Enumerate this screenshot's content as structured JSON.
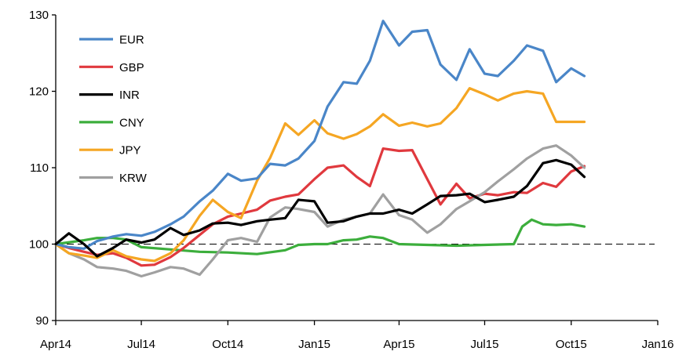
{
  "chart_data": {
    "type": "line",
    "title": "",
    "xlabel": "",
    "ylabel": "",
    "ylim": [
      90,
      130
    ],
    "yticks": [
      90,
      100,
      110,
      120,
      130
    ],
    "xlim": [
      "2014-04-01",
      "2016-01-01"
    ],
    "xticks": [
      {
        "date": "2014-04-01",
        "label": "Apr14"
      },
      {
        "date": "2014-07-01",
        "label": "Jul14"
      },
      {
        "date": "2014-10-01",
        "label": "Oct14"
      },
      {
        "date": "2015-01-01",
        "label": "Jan15"
      },
      {
        "date": "2015-04-01",
        "label": "Apr15"
      },
      {
        "date": "2015-07-01",
        "label": "Jul15"
      },
      {
        "date": "2015-10-01",
        "label": "Oct15"
      },
      {
        "date": "2016-01-01",
        "label": "Jan16"
      }
    ],
    "reference_line": {
      "value": 100,
      "style": "dashed"
    },
    "grid": false,
    "legend_position": "top-left",
    "series": [
      {
        "name": "EUR",
        "color": "#4a86c8",
        "x": [
          "2014-04-01",
          "2014-04-15",
          "2014-05-01",
          "2014-05-15",
          "2014-06-01",
          "2014-06-15",
          "2014-07-01",
          "2014-07-15",
          "2014-08-01",
          "2014-08-15",
          "2014-09-01",
          "2014-09-15",
          "2014-10-01",
          "2014-10-15",
          "2014-11-01",
          "2014-11-15",
          "2014-12-01",
          "2014-12-15",
          "2015-01-01",
          "2015-01-15",
          "2015-02-01",
          "2015-02-15",
          "2015-03-01",
          "2015-03-15",
          "2015-04-01",
          "2015-04-15",
          "2015-05-01",
          "2015-05-15",
          "2015-06-01",
          "2015-06-15",
          "2015-07-01",
          "2015-07-15",
          "2015-08-01",
          "2015-08-15",
          "2015-09-01",
          "2015-09-15",
          "2015-10-01",
          "2015-10-15"
        ],
        "y": [
          100,
          99.6,
          99.4,
          100.4,
          101,
          101.3,
          101.1,
          101.6,
          102.6,
          103.6,
          105.6,
          107,
          109.2,
          108.3,
          108.6,
          110.5,
          110.3,
          111.2,
          113.5,
          118,
          121.2,
          121,
          124,
          129.2,
          126,
          127.8,
          128,
          123.5,
          121.5,
          125.5,
          122.3,
          122,
          124,
          126,
          125.3,
          121.2,
          123,
          122
        ]
      },
      {
        "name": "GBP",
        "color": "#e0393e",
        "x": [
          "2014-04-01",
          "2014-04-15",
          "2014-05-01",
          "2014-05-15",
          "2014-06-01",
          "2014-06-15",
          "2014-07-01",
          "2014-07-15",
          "2014-08-01",
          "2014-08-15",
          "2014-09-01",
          "2014-09-15",
          "2014-10-01",
          "2014-10-15",
          "2014-11-01",
          "2014-11-15",
          "2014-12-01",
          "2014-12-15",
          "2015-01-01",
          "2015-01-15",
          "2015-02-01",
          "2015-02-15",
          "2015-03-01",
          "2015-03-15",
          "2015-04-01",
          "2015-04-15",
          "2015-05-01",
          "2015-05-15",
          "2015-06-01",
          "2015-06-15",
          "2015-07-01",
          "2015-07-15",
          "2015-08-01",
          "2015-08-15",
          "2015-09-01",
          "2015-09-15",
          "2015-10-01",
          "2015-10-15"
        ],
        "y": [
          100,
          99.5,
          99,
          98.6,
          98.8,
          98.2,
          97.2,
          97.3,
          98.3,
          99.5,
          101.2,
          102.6,
          103.6,
          104,
          104.5,
          105.7,
          106.2,
          106.5,
          108.5,
          110,
          110.3,
          108.8,
          107.6,
          112.5,
          112.2,
          112.3,
          108.5,
          105.2,
          107.9,
          106,
          106.6,
          106.4,
          106.8,
          106.7,
          108,
          107.5,
          109.5,
          110.2
        ]
      },
      {
        "name": "INR",
        "color": "#000000",
        "x": [
          "2014-04-01",
          "2014-04-15",
          "2014-05-01",
          "2014-05-15",
          "2014-06-01",
          "2014-06-15",
          "2014-07-01",
          "2014-07-15",
          "2014-08-01",
          "2014-08-15",
          "2014-09-01",
          "2014-09-15",
          "2014-10-01",
          "2014-10-15",
          "2014-11-01",
          "2014-11-15",
          "2014-12-01",
          "2014-12-15",
          "2015-01-01",
          "2015-01-15",
          "2015-02-01",
          "2015-02-15",
          "2015-03-01",
          "2015-03-15",
          "2015-04-01",
          "2015-04-15",
          "2015-05-01",
          "2015-05-15",
          "2015-06-01",
          "2015-06-15",
          "2015-07-01",
          "2015-07-15",
          "2015-08-01",
          "2015-08-15",
          "2015-09-01",
          "2015-09-15",
          "2015-10-01",
          "2015-10-15"
        ],
        "y": [
          100,
          101.4,
          100,
          98.4,
          99.5,
          100.6,
          100.2,
          100.6,
          102.1,
          101.2,
          101.8,
          102.7,
          102.8,
          102.5,
          103,
          103.2,
          103.4,
          105.8,
          105.6,
          102.8,
          103,
          103.6,
          104,
          104,
          104.5,
          104,
          105.2,
          106.3,
          106.4,
          106.6,
          105.5,
          105.8,
          106.2,
          107.6,
          110.6,
          111,
          110.4,
          108.8
        ]
      },
      {
        "name": "CNY",
        "color": "#3cae3c",
        "x": [
          "2014-04-01",
          "2014-05-01",
          "2014-05-15",
          "2014-06-01",
          "2014-06-15",
          "2014-07-01",
          "2014-08-01",
          "2014-09-01",
          "2014-10-01",
          "2014-11-01",
          "2014-12-01",
          "2014-12-15",
          "2015-01-01",
          "2015-01-15",
          "2015-02-01",
          "2015-02-15",
          "2015-03-01",
          "2015-03-15",
          "2015-04-01",
          "2015-05-01",
          "2015-06-01",
          "2015-07-01",
          "2015-08-01",
          "2015-08-10",
          "2015-08-20",
          "2015-09-01",
          "2015-09-15",
          "2015-10-01",
          "2015-10-15"
        ],
        "y": [
          100,
          100.5,
          100.8,
          100.8,
          100.6,
          99.6,
          99.3,
          99,
          98.9,
          98.7,
          99.2,
          99.9,
          100,
          100,
          100.5,
          100.6,
          101,
          100.8,
          100,
          99.9,
          99.8,
          99.9,
          100,
          102.3,
          103.2,
          102.6,
          102.5,
          102.6,
          102.3
        ]
      },
      {
        "name": "JPY",
        "color": "#f5a623",
        "x": [
          "2014-04-01",
          "2014-04-15",
          "2014-05-01",
          "2014-05-15",
          "2014-06-01",
          "2014-06-15",
          "2014-07-01",
          "2014-07-15",
          "2014-08-01",
          "2014-08-15",
          "2014-09-01",
          "2014-09-15",
          "2014-10-01",
          "2014-10-15",
          "2014-11-01",
          "2014-11-15",
          "2014-12-01",
          "2014-12-15",
          "2015-01-01",
          "2015-01-15",
          "2015-02-01",
          "2015-02-15",
          "2015-03-01",
          "2015-03-15",
          "2015-04-01",
          "2015-04-15",
          "2015-05-01",
          "2015-05-15",
          "2015-06-01",
          "2015-06-15",
          "2015-07-01",
          "2015-07-15",
          "2015-08-01",
          "2015-08-15",
          "2015-09-01",
          "2015-09-15",
          "2015-10-01",
          "2015-10-15"
        ],
        "y": [
          100,
          98.8,
          98.5,
          98.2,
          99.2,
          98.4,
          98,
          97.8,
          98.8,
          100.5,
          103.7,
          105.8,
          104.2,
          103.4,
          108.3,
          111.3,
          115.8,
          114.3,
          116.2,
          114.5,
          113.8,
          114.4,
          115.4,
          117,
          115.5,
          115.9,
          115.4,
          115.8,
          117.8,
          120.4,
          119.6,
          118.8,
          119.7,
          120,
          119.7,
          116,
          116,
          116
        ]
      },
      {
        "name": "KRW",
        "color": "#a0a0a0",
        "x": [
          "2014-04-01",
          "2014-04-15",
          "2014-05-01",
          "2014-05-15",
          "2014-06-01",
          "2014-06-15",
          "2014-07-01",
          "2014-07-15",
          "2014-08-01",
          "2014-08-15",
          "2014-09-01",
          "2014-09-15",
          "2014-10-01",
          "2014-10-15",
          "2014-11-01",
          "2014-11-15",
          "2014-12-01",
          "2014-12-15",
          "2015-01-01",
          "2015-01-15",
          "2015-02-01",
          "2015-02-15",
          "2015-03-01",
          "2015-03-15",
          "2015-04-01",
          "2015-04-15",
          "2015-05-01",
          "2015-05-15",
          "2015-06-01",
          "2015-06-15",
          "2015-07-01",
          "2015-07-15",
          "2015-08-01",
          "2015-08-15",
          "2015-09-01",
          "2015-09-15",
          "2015-10-01",
          "2015-10-15"
        ],
        "y": [
          100,
          98.8,
          98,
          97,
          96.8,
          96.5,
          95.8,
          96.3,
          97,
          96.8,
          96,
          98,
          100.5,
          100.8,
          100.3,
          103.5,
          104.8,
          104.6,
          104.2,
          102.3,
          103.2,
          103.6,
          104,
          106.5,
          103.8,
          103.2,
          101.5,
          102.6,
          104.6,
          105.6,
          106.8,
          108.2,
          109.8,
          111.2,
          112.5,
          112.9,
          111.6,
          110
        ]
      }
    ]
  }
}
